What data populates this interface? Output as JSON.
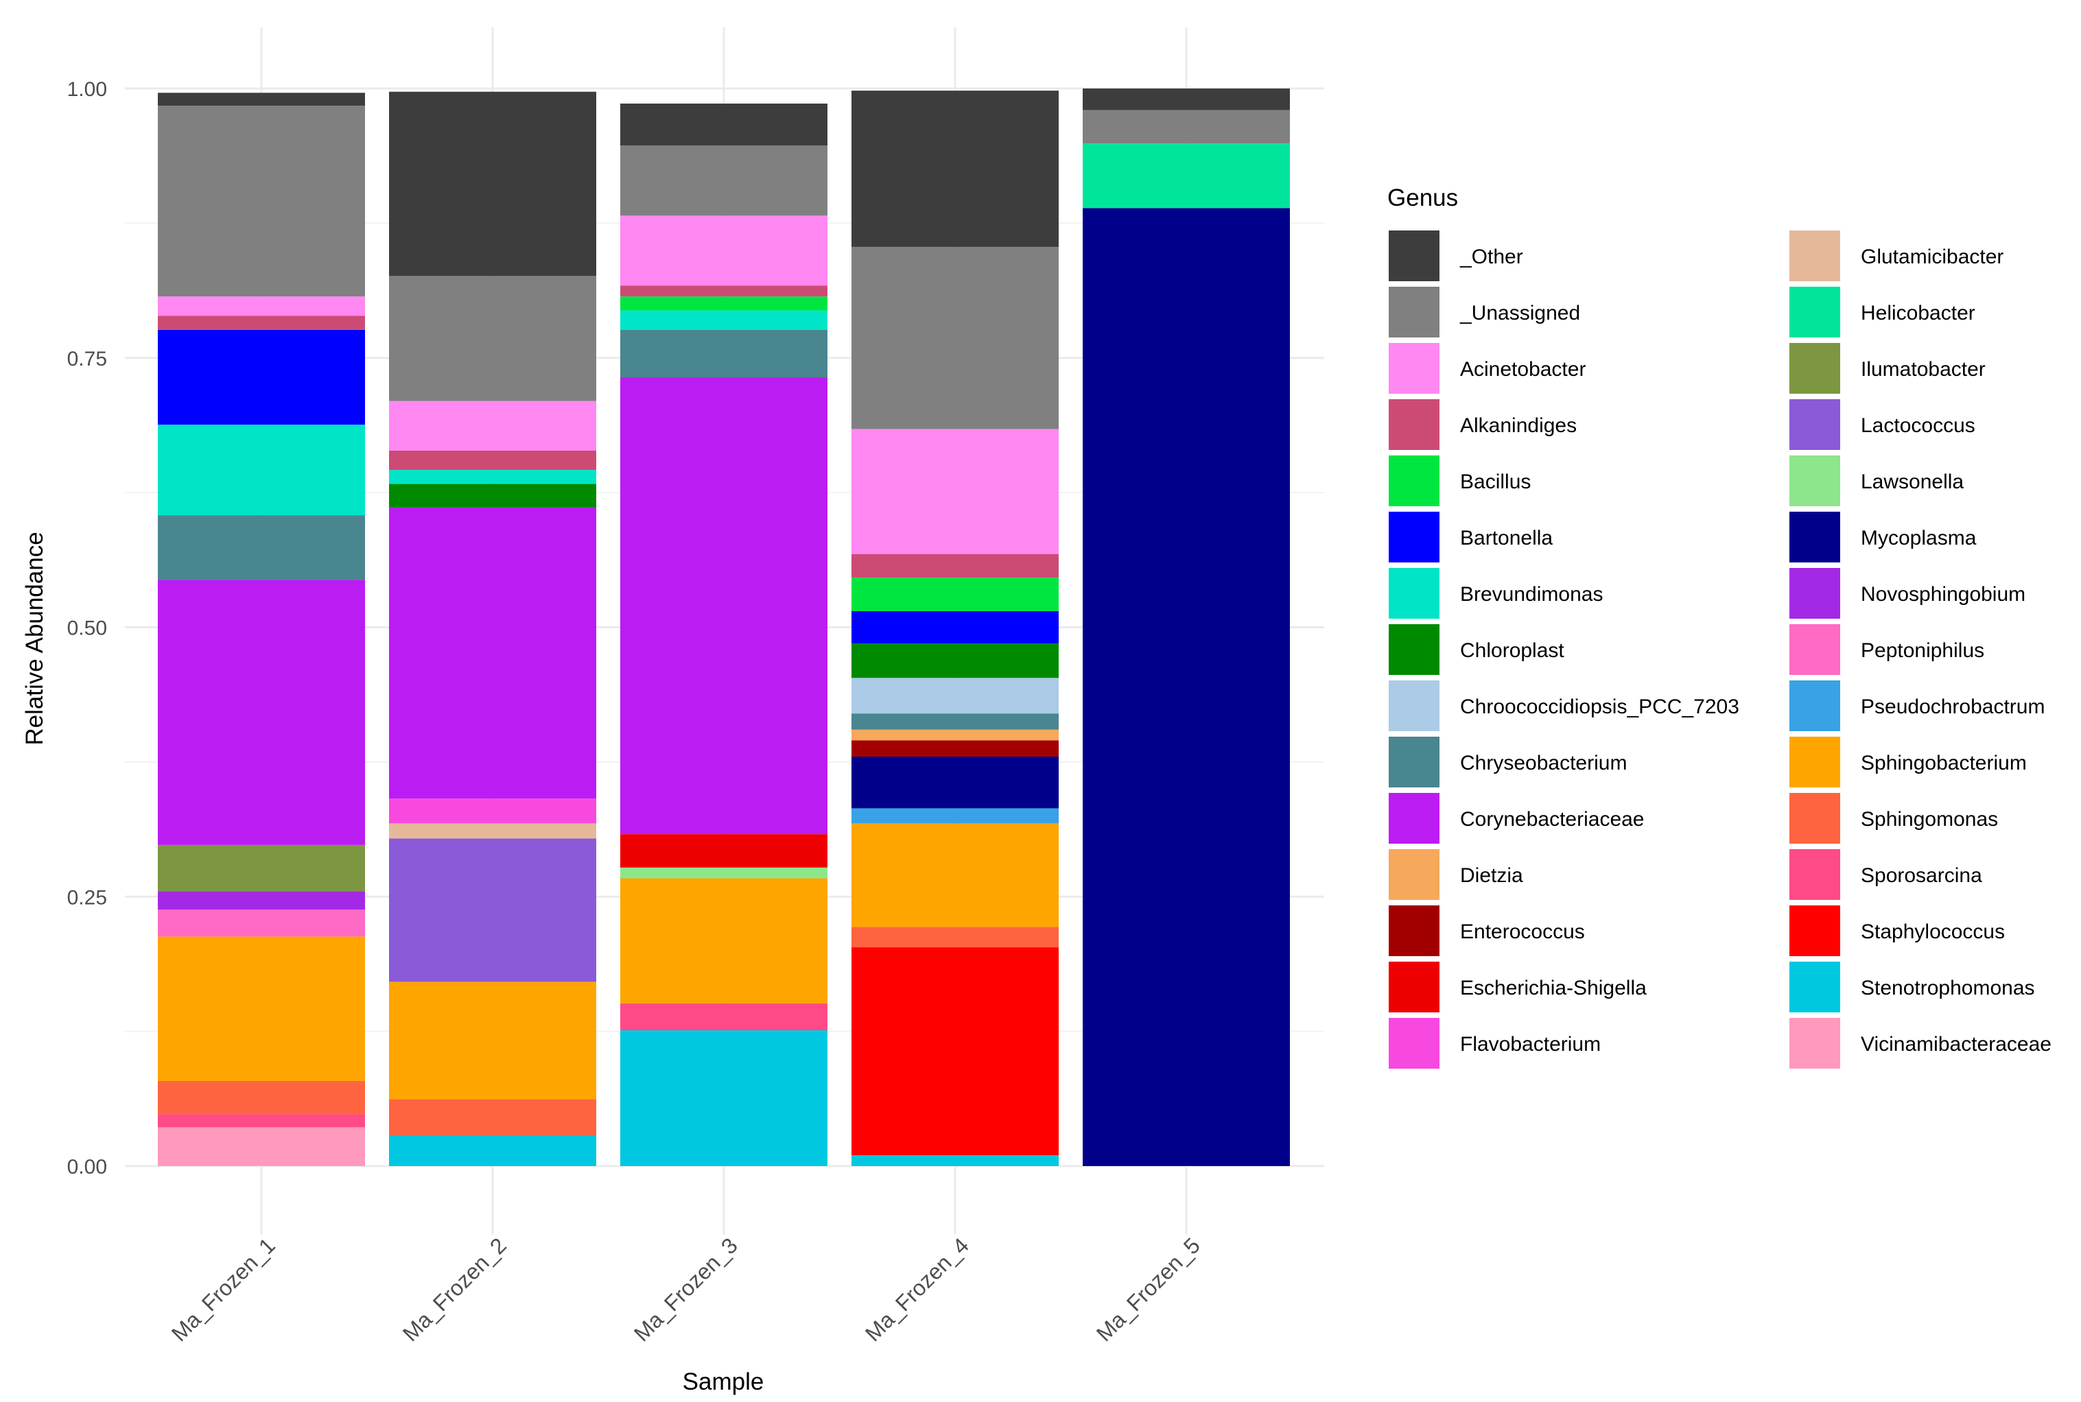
{
  "chart_data": {
    "type": "bar",
    "stacked": true,
    "xlabel": "Sample",
    "ylabel": "Relative Abundance",
    "ylim": [
      0,
      1
    ],
    "yticks": [
      "0.00",
      "0.25",
      "0.50",
      "0.75",
      "1.00"
    ],
    "yticks_values": [
      0,
      0.25,
      0.5,
      0.75,
      1.0
    ],
    "legend_title": "Genus",
    "legend_position": "right",
    "categories": [
      "Ma_Frozen_1",
      "Ma_Frozen_2",
      "Ma_Frozen_3",
      "Ma_Frozen_4",
      "Ma_Frozen_5"
    ],
    "series": [
      {
        "name": "_Other",
        "color": "#3d3d3d",
        "values": [
          0.012,
          0.171,
          0.039,
          0.145,
          0.02
        ]
      },
      {
        "name": "_Unassigned",
        "color": "#808080",
        "values": [
          0.177,
          0.116,
          0.065,
          0.169,
          0.031
        ]
      },
      {
        "name": "Acinetobacter",
        "color": "#ff88f2",
        "values": [
          0.018,
          0.046,
          0.065,
          0.116,
          0
        ]
      },
      {
        "name": "Alkanindiges",
        "color": "#cc4b75",
        "values": [
          0.013,
          0.018,
          0.01,
          0.022,
          0
        ]
      },
      {
        "name": "Bacillus",
        "color": "#00e640",
        "values": [
          0,
          0,
          0.013,
          0.031,
          0
        ]
      },
      {
        "name": "Bartonella",
        "color": "#0000ff",
        "values": [
          0.088,
          0,
          0,
          0.03,
          0
        ]
      },
      {
        "name": "Brevundimonas",
        "color": "#00e5c7",
        "values": [
          0.084,
          0.013,
          0.018,
          0,
          0
        ]
      },
      {
        "name": "Chloroplast",
        "color": "#008a00",
        "values": [
          0,
          0.022,
          0,
          0.032,
          0
        ]
      },
      {
        "name": "Chroococcidiopsis_PCC_7203",
        "color": "#abcbe6",
        "values": [
          0,
          0,
          0,
          0.033,
          0
        ]
      },
      {
        "name": "Chryseobacterium",
        "color": "#4a868f",
        "values": [
          0.06,
          0,
          0.044,
          0.015,
          0
        ]
      },
      {
        "name": "Corynebacteriaceae",
        "color": "#bb1cf2",
        "values": [
          0.246,
          0.27,
          0.424,
          0,
          0
        ]
      },
      {
        "name": "Dietzia",
        "color": "#f6a85c",
        "values": [
          0,
          0,
          0,
          0.01,
          0
        ]
      },
      {
        "name": "Enterococcus",
        "color": "#a20000",
        "values": [
          0,
          0,
          0,
          0.015,
          0
        ]
      },
      {
        "name": "Escherichia-Shigella",
        "color": "#ee0000",
        "values": [
          0,
          0,
          0.031,
          0,
          0
        ]
      },
      {
        "name": "Flavobacterium",
        "color": "#f749e0",
        "values": [
          0,
          0.023,
          0,
          0,
          0
        ]
      },
      {
        "name": "Glutamicibacter",
        "color": "#e6b89a",
        "values": [
          0,
          0.014,
          0,
          0,
          0
        ]
      },
      {
        "name": "Helicobacter",
        "color": "#00e59b",
        "values": [
          0,
          0,
          0,
          0,
          0.06
        ]
      },
      {
        "name": "Ilumatobacter",
        "color": "#7d9641",
        "values": [
          0.043,
          0,
          0,
          0,
          0
        ]
      },
      {
        "name": "Lactococcus",
        "color": "#8a5ad9",
        "values": [
          0,
          0.133,
          0,
          0,
          0
        ]
      },
      {
        "name": "Lawsonella",
        "color": "#8de68b",
        "values": [
          0,
          0,
          0.01,
          0,
          0
        ]
      },
      {
        "name": "Mycoplasma",
        "color": "#00008b",
        "values": [
          0,
          0,
          0,
          0.048,
          0.889
        ]
      },
      {
        "name": "Novosphingobium",
        "color": "#a429e6",
        "values": [
          0.017,
          0,
          0,
          0,
          0
        ]
      },
      {
        "name": "Peptoniphilus",
        "color": "#ff6ac4",
        "values": [
          0.025,
          0,
          0,
          0,
          0
        ]
      },
      {
        "name": "Pseudochrobactrum",
        "color": "#39a2e6",
        "values": [
          0,
          0,
          0,
          0.014,
          0
        ]
      },
      {
        "name": "Sphingobacterium",
        "color": "#ffa500",
        "values": [
          0.134,
          0.109,
          0.116,
          0.096,
          0
        ]
      },
      {
        "name": "Sphingomonas",
        "color": "#ff6440",
        "values": [
          0.031,
          0.034,
          0,
          0.019,
          0
        ]
      },
      {
        "name": "Sporosarcina",
        "color": "#ff4a88",
        "values": [
          0.012,
          0,
          0.025,
          0,
          0
        ]
      },
      {
        "name": "Staphylococcus",
        "color": "#ff0000",
        "values": [
          0,
          0,
          0,
          0.193,
          0
        ]
      },
      {
        "name": "Stenotrophomonas",
        "color": "#00c8e0",
        "values": [
          0,
          0.028,
          0.126,
          0.01,
          0
        ]
      },
      {
        "name": "Vicinamibacteraceae",
        "color": "#ff99be",
        "values": [
          0.036,
          0,
          0,
          0,
          0
        ]
      }
    ]
  }
}
